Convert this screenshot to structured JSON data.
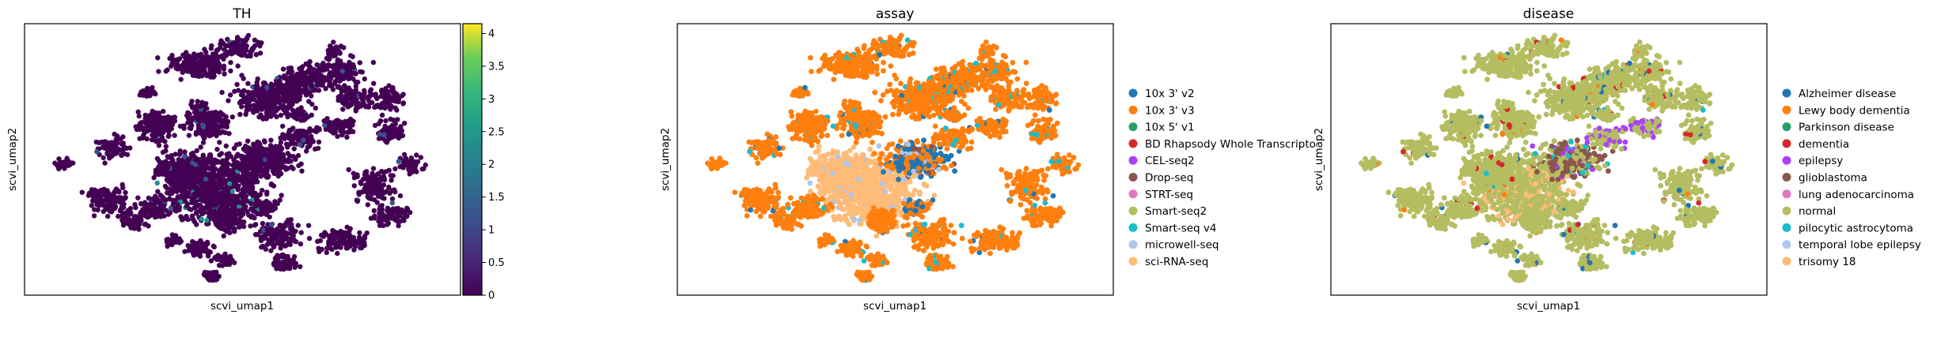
{
  "chart_data": [
    {
      "type": "scatter",
      "title": "TH",
      "xlabel": "scvi_umap1",
      "ylabel": "scvi_umap2",
      "colorbar": {
        "colormap": "viridis",
        "range": [
          0,
          4.15
        ],
        "ticks": [
          "0",
          "0.5",
          "1",
          "1.5",
          "2",
          "2.5",
          "3",
          "3.5",
          "4"
        ],
        "tick_values": [
          0,
          0.5,
          1,
          1.5,
          2,
          2.5,
          3,
          3.5,
          4
        ]
      },
      "base_color": "#440154",
      "highlight_colors": [
        "#3b528b",
        "#21918c",
        "#2a788e"
      ],
      "grid": false
    },
    {
      "type": "scatter",
      "title": "assay",
      "xlabel": "scvi_umap1",
      "ylabel": "scvi_umap2",
      "legend_position": "right",
      "grid": false,
      "legend": [
        {
          "label": "10x 3' v2",
          "color": "#1f77b4"
        },
        {
          "label": "10x 3' v3",
          "color": "#ff7f0e"
        },
        {
          "label": "10x 5' v1",
          "color": "#279e68"
        },
        {
          "label": "BD Rhapsody Whole Transcripto",
          "color": "#d62728"
        },
        {
          "label": "CEL-seq2",
          "color": "#aa40fc"
        },
        {
          "label": "Drop-seq",
          "color": "#8c564b"
        },
        {
          "label": "STRT-seq",
          "color": "#e377c2"
        },
        {
          "label": "Smart-seq2",
          "color": "#b5bd61"
        },
        {
          "label": "Smart-seq v4",
          "color": "#17becf"
        },
        {
          "label": "microwell-seq",
          "color": "#aec7e8"
        },
        {
          "label": "sci-RNA-seq",
          "color": "#ffbb78"
        }
      ]
    },
    {
      "type": "scatter",
      "title": "disease",
      "xlabel": "scvi_umap1",
      "ylabel": "scvi_umap2",
      "legend_position": "right",
      "grid": false,
      "legend": [
        {
          "label": "Alzheimer disease",
          "color": "#1f77b4"
        },
        {
          "label": "Lewy body dementia",
          "color": "#ff7f0e"
        },
        {
          "label": "Parkinson disease",
          "color": "#279e68"
        },
        {
          "label": "dementia",
          "color": "#d62728"
        },
        {
          "label": "epilepsy",
          "color": "#aa40fc"
        },
        {
          "label": "glioblastoma",
          "color": "#8c564b"
        },
        {
          "label": "lung adenocarcinoma",
          "color": "#e377c2"
        },
        {
          "label": "normal",
          "color": "#b5bd61"
        },
        {
          "label": "pilocytic astrocytoma",
          "color": "#17becf"
        },
        {
          "label": "temporal lobe epilepsy",
          "color": "#aec7e8"
        },
        {
          "label": "trisomy 18",
          "color": "#ffbb78"
        }
      ]
    }
  ]
}
